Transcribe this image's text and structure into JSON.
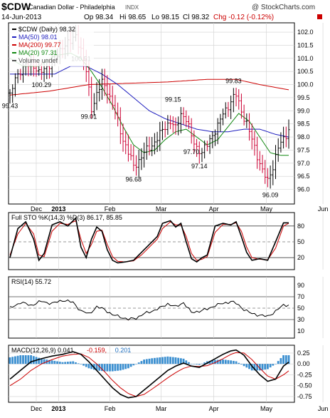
{
  "header": {
    "ticker": "$CDW",
    "name": "Canadian Dollar - Philadelphia",
    "exchange": "INDX",
    "date": "14-Jun-2013",
    "quote": {
      "open": "Op 98.34",
      "high": "Hi 98.65",
      "low": "Lo 98.15",
      "close": "Cl 98.32",
      "change": "Chg -0.12 (-0.12%)"
    },
    "brand": "@ StockCharts.com"
  },
  "chart_data": [
    {
      "type": "ohlc",
      "panel": "price",
      "legend": [
        {
          "text": "$CDW (Daily) 98.32",
          "color": "#000000"
        },
        {
          "text": "MA(50) 98.01",
          "color": "#1f1fbf"
        },
        {
          "text": "MA(200) 99.77",
          "color": "#cc0000"
        },
        {
          "text": "MA(20) 97.31",
          "color": "#118811"
        },
        {
          "text": "Volume undef",
          "color": "#555555"
        }
      ],
      "x_labels": [
        "Dec",
        "2013",
        "Feb",
        "Mar",
        "Apr",
        "May",
        "Jun"
      ],
      "x_label_pos": [
        10,
        18.5,
        38,
        57.5,
        77.5,
        97.5,
        119
      ],
      "ylim": [
        95.5,
        102.3
      ],
      "yticks": [
        96.0,
        96.5,
        97.0,
        97.5,
        98.0,
        98.5,
        99.0,
        99.5,
        100.0,
        100.5,
        101.0,
        101.5,
        102.0
      ],
      "price_anchors": [
        [
          0,
          99.5
        ],
        [
          2,
          100.3
        ],
        [
          5,
          100.6
        ],
        [
          8,
          100.9
        ],
        [
          11,
          100.4
        ],
        [
          14,
          100.7
        ],
        [
          17,
          100.9
        ],
        [
          20,
          101.5
        ],
        [
          23,
          101.6
        ],
        [
          25,
          101.9
        ],
        [
          27,
          101.3
        ],
        [
          29,
          100.5
        ],
        [
          31,
          99.1
        ],
        [
          33,
          99.6
        ],
        [
          35,
          100.1
        ],
        [
          37,
          99.8
        ],
        [
          39,
          99.2
        ],
        [
          41,
          98.6
        ],
        [
          43,
          97.9
        ],
        [
          45,
          97.4
        ],
        [
          47,
          96.9
        ],
        [
          49,
          97.1
        ],
        [
          51,
          97.4
        ],
        [
          53,
          97.6
        ],
        [
          55,
          97.8
        ],
        [
          57,
          98.1
        ],
        [
          59,
          98.4
        ],
        [
          61,
          98.6
        ],
        [
          63,
          98.3
        ],
        [
          65,
          98.9
        ],
        [
          67,
          98.7
        ],
        [
          69,
          98.0
        ],
        [
          71,
          97.6
        ],
        [
          73,
          97.4
        ],
        [
          75,
          97.7
        ],
        [
          77,
          98.1
        ],
        [
          79,
          98.4
        ],
        [
          81,
          98.9
        ],
        [
          83,
          99.2
        ],
        [
          85,
          99.5
        ],
        [
          86,
          99.6
        ],
        [
          88,
          99.0
        ],
        [
          90,
          98.5
        ],
        [
          92,
          97.9
        ],
        [
          94,
          97.3
        ],
        [
          96,
          96.7
        ],
        [
          98,
          96.3
        ],
        [
          100,
          96.9
        ],
        [
          102,
          97.6
        ],
        [
          104,
          97.9
        ],
        [
          106,
          98.3
        ]
      ],
      "ma50_anchors": [
        [
          0,
          100.4
        ],
        [
          8,
          100.4
        ],
        [
          17,
          100.4
        ],
        [
          23,
          100.7
        ],
        [
          29,
          100.7
        ],
        [
          35,
          100.4
        ],
        [
          41,
          100.0
        ],
        [
          47,
          99.5
        ],
        [
          53,
          99.0
        ],
        [
          59,
          98.7
        ],
        [
          65,
          98.5
        ],
        [
          71,
          98.3
        ],
        [
          77,
          98.2
        ],
        [
          83,
          98.2
        ],
        [
          89,
          98.3
        ],
        [
          95,
          98.3
        ],
        [
          101,
          98.1
        ],
        [
          106,
          98.0
        ]
      ],
      "ma200_anchors": [
        [
          0,
          99.6
        ],
        [
          15,
          99.75
        ],
        [
          30,
          100.0
        ],
        [
          45,
          100.05
        ],
        [
          60,
          100.1
        ],
        [
          75,
          100.2
        ],
        [
          86,
          100.2
        ],
        [
          95,
          100.0
        ],
        [
          106,
          99.8
        ]
      ],
      "ma20_anchors": [
        [
          0,
          101.0
        ],
        [
          5,
          100.7
        ],
        [
          11,
          100.7
        ],
        [
          17,
          101.1
        ],
        [
          23,
          101.2
        ],
        [
          27,
          101.0
        ],
        [
          31,
          100.5
        ],
        [
          35,
          99.9
        ],
        [
          39,
          99.2
        ],
        [
          43,
          98.4
        ],
        [
          47,
          97.7
        ],
        [
          51,
          97.4
        ],
        [
          55,
          97.5
        ],
        [
          59,
          97.9
        ],
        [
          63,
          98.2
        ],
        [
          67,
          98.3
        ],
        [
          71,
          98.0
        ],
        [
          75,
          97.7
        ],
        [
          79,
          97.9
        ],
        [
          83,
          98.4
        ],
        [
          87,
          98.9
        ],
        [
          91,
          98.6
        ],
        [
          95,
          98.0
        ],
        [
          99,
          97.4
        ],
        [
          103,
          97.3
        ],
        [
          106,
          97.3
        ]
      ],
      "annotations": [
        {
          "text": "99.43",
          "x": 0,
          "y": 99.1
        },
        {
          "text": "100.29",
          "x": 12,
          "y": 99.9
        },
        {
          "text": "100.51",
          "x": 27,
          "y": 100.9
        },
        {
          "text": "99.01",
          "x": 30,
          "y": 98.7
        },
        {
          "text": "96.68",
          "x": 47,
          "y": 96.3
        },
        {
          "text": "99.15",
          "x": 62,
          "y": 99.35
        },
        {
          "text": "97.70",
          "x": 69,
          "y": 97.35
        },
        {
          "text": "97.14",
          "x": 72,
          "y": 96.8
        },
        {
          "text": "99.83",
          "x": 85,
          "y": 100.05
        },
        {
          "text": "96.09",
          "x": 99,
          "y": 95.7
        }
      ]
    },
    {
      "type": "line",
      "panel": "stochastic",
      "title": "Full STO %K(14,3) %D(3) 86.17, 85.85",
      "series": [
        {
          "name": "%K",
          "color": "#000000"
        },
        {
          "name": "%D",
          "color": "#cc0000"
        }
      ],
      "ylim": [
        0,
        100
      ],
      "yticks": [
        20,
        50,
        80
      ],
      "k_anchors": [
        [
          0,
          20
        ],
        [
          3,
          75
        ],
        [
          6,
          88
        ],
        [
          9,
          55
        ],
        [
          11,
          15
        ],
        [
          13,
          28
        ],
        [
          16,
          82
        ],
        [
          19,
          88
        ],
        [
          22,
          80
        ],
        [
          25,
          95
        ],
        [
          27,
          40
        ],
        [
          29,
          20
        ],
        [
          31,
          55
        ],
        [
          33,
          78
        ],
        [
          35,
          70
        ],
        [
          37,
          35
        ],
        [
          39,
          15
        ],
        [
          41,
          10
        ],
        [
          44,
          12
        ],
        [
          47,
          15
        ],
        [
          50,
          30
        ],
        [
          53,
          45
        ],
        [
          56,
          60
        ],
        [
          58,
          85
        ],
        [
          61,
          90
        ],
        [
          63,
          78
        ],
        [
          65,
          85
        ],
        [
          67,
          50
        ],
        [
          69,
          18
        ],
        [
          71,
          12
        ],
        [
          73,
          20
        ],
        [
          75,
          25
        ],
        [
          78,
          80
        ],
        [
          81,
          85
        ],
        [
          84,
          82
        ],
        [
          86,
          88
        ],
        [
          88,
          60
        ],
        [
          90,
          30
        ],
        [
          92,
          15
        ],
        [
          95,
          18
        ],
        [
          98,
          15
        ],
        [
          101,
          50
        ],
        [
          104,
          86
        ],
        [
          106,
          86
        ]
      ],
      "d_anchors": [
        [
          0,
          25
        ],
        [
          3,
          65
        ],
        [
          6,
          85
        ],
        [
          9,
          65
        ],
        [
          11,
          25
        ],
        [
          13,
          22
        ],
        [
          16,
          70
        ],
        [
          19,
          85
        ],
        [
          22,
          83
        ],
        [
          25,
          90
        ],
        [
          27,
          55
        ],
        [
          29,
          28
        ],
        [
          31,
          45
        ],
        [
          33,
          70
        ],
        [
          35,
          72
        ],
        [
          37,
          45
        ],
        [
          39,
          22
        ],
        [
          41,
          13
        ],
        [
          44,
          12
        ],
        [
          47,
          14
        ],
        [
          50,
          25
        ],
        [
          53,
          40
        ],
        [
          56,
          55
        ],
        [
          58,
          75
        ],
        [
          61,
          88
        ],
        [
          63,
          82
        ],
        [
          65,
          82
        ],
        [
          67,
          60
        ],
        [
          69,
          28
        ],
        [
          71,
          15
        ],
        [
          73,
          17
        ],
        [
          75,
          22
        ],
        [
          78,
          68
        ],
        [
          81,
          83
        ],
        [
          84,
          83
        ],
        [
          86,
          86
        ],
        [
          88,
          70
        ],
        [
          90,
          40
        ],
        [
          92,
          20
        ],
        [
          95,
          17
        ],
        [
          98,
          16
        ],
        [
          101,
          38
        ],
        [
          104,
          80
        ],
        [
          106,
          85
        ]
      ]
    },
    {
      "type": "area",
      "panel": "rsi",
      "title": "RSI(14) 55.72",
      "ylim": [
        0,
        100
      ],
      "yticks": [
        10,
        30,
        50,
        70,
        90
      ],
      "rsi_anchors": [
        [
          0,
          50
        ],
        [
          4,
          60
        ],
        [
          8,
          55
        ],
        [
          12,
          62
        ],
        [
          16,
          58
        ],
        [
          20,
          64
        ],
        [
          24,
          60
        ],
        [
          27,
          45
        ],
        [
          30,
          40
        ],
        [
          33,
          52
        ],
        [
          36,
          48
        ],
        [
          39,
          38
        ],
        [
          42,
          35
        ],
        [
          45,
          30
        ],
        [
          48,
          33
        ],
        [
          51,
          40
        ],
        [
          54,
          45
        ],
        [
          57,
          50
        ],
        [
          60,
          58
        ],
        [
          63,
          52
        ],
        [
          66,
          60
        ],
        [
          69,
          42
        ],
        [
          72,
          45
        ],
        [
          75,
          48
        ],
        [
          78,
          55
        ],
        [
          81,
          58
        ],
        [
          84,
          62
        ],
        [
          86,
          58
        ],
        [
          89,
          48
        ],
        [
          92,
          40
        ],
        [
          95,
          38
        ],
        [
          98,
          35
        ],
        [
          101,
          45
        ],
        [
          104,
          55
        ],
        [
          106,
          56
        ]
      ]
    },
    {
      "type": "bar",
      "panel": "macd",
      "title": "MACD(12,26,9) 0.041, -0.159, 0.201",
      "legend": [
        {
          "text": "MACD(12,26,9) 0.041,",
          "color": "#000000"
        },
        {
          "text": "-0.159,",
          "color": "#cc0000"
        },
        {
          "text": "0.201",
          "color": "#1f6fbf"
        }
      ],
      "ylim": [
        -0.85,
        0.38
      ],
      "yticks": [
        0.25,
        0.0,
        -0.25,
        -0.5,
        -0.75
      ],
      "macd_anchors": [
        [
          0,
          -0.35
        ],
        [
          4,
          -0.15
        ],
        [
          8,
          0.05
        ],
        [
          12,
          0.12
        ],
        [
          16,
          0.18
        ],
        [
          20,
          0.22
        ],
        [
          24,
          0.28
        ],
        [
          27,
          0.22
        ],
        [
          30,
          0.05
        ],
        [
          33,
          -0.15
        ],
        [
          36,
          -0.35
        ],
        [
          39,
          -0.55
        ],
        [
          42,
          -0.7
        ],
        [
          45,
          -0.78
        ],
        [
          48,
          -0.75
        ],
        [
          51,
          -0.6
        ],
        [
          54,
          -0.45
        ],
        [
          57,
          -0.3
        ],
        [
          60,
          -0.15
        ],
        [
          63,
          -0.05
        ],
        [
          66,
          0.02
        ],
        [
          69,
          -0.05
        ],
        [
          72,
          -0.08
        ],
        [
          75,
          0.02
        ],
        [
          78,
          0.12
        ],
        [
          81,
          0.22
        ],
        [
          84,
          0.3
        ],
        [
          86,
          0.32
        ],
        [
          89,
          0.2
        ],
        [
          92,
          -0.05
        ],
        [
          95,
          -0.25
        ],
        [
          98,
          -0.4
        ],
        [
          101,
          -0.35
        ],
        [
          104,
          -0.05
        ],
        [
          106,
          0.04
        ]
      ],
      "signal_anchors": [
        [
          0,
          -0.5
        ],
        [
          4,
          -0.35
        ],
        [
          8,
          -0.15
        ],
        [
          12,
          0.0
        ],
        [
          16,
          0.1
        ],
        [
          20,
          0.18
        ],
        [
          24,
          0.22
        ],
        [
          27,
          0.23
        ],
        [
          30,
          0.15
        ],
        [
          33,
          0.0
        ],
        [
          36,
          -0.18
        ],
        [
          39,
          -0.38
        ],
        [
          42,
          -0.55
        ],
        [
          45,
          -0.68
        ],
        [
          48,
          -0.75
        ],
        [
          51,
          -0.7
        ],
        [
          54,
          -0.58
        ],
        [
          57,
          -0.45
        ],
        [
          60,
          -0.32
        ],
        [
          63,
          -0.2
        ],
        [
          66,
          -0.1
        ],
        [
          69,
          -0.05
        ],
        [
          72,
          -0.06
        ],
        [
          75,
          -0.04
        ],
        [
          78,
          0.03
        ],
        [
          81,
          0.12
        ],
        [
          84,
          0.22
        ],
        [
          86,
          0.26
        ],
        [
          89,
          0.25
        ],
        [
          92,
          0.1
        ],
        [
          95,
          -0.1
        ],
        [
          98,
          -0.28
        ],
        [
          101,
          -0.35
        ],
        [
          104,
          -0.25
        ],
        [
          106,
          -0.16
        ]
      ]
    }
  ]
}
